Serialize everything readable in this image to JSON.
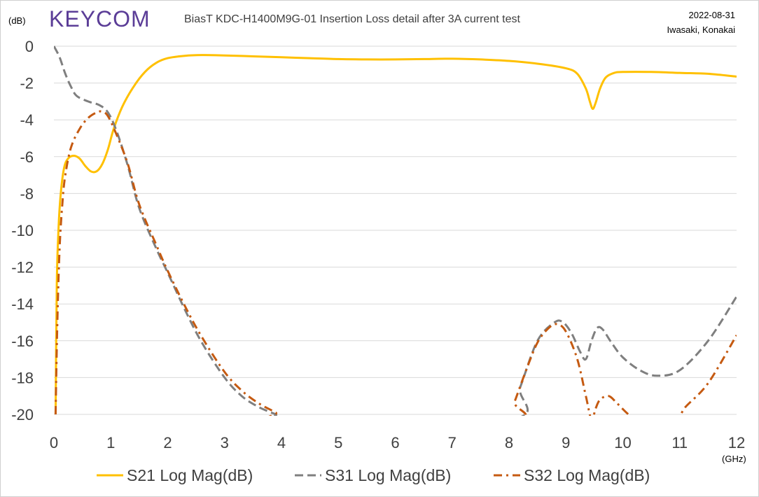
{
  "header": {
    "logo_text": "KEYCOM",
    "title": "BiasT KDC-H1400M9G-01 Insertion Loss detail after 3A current test",
    "date": "2022-08-31",
    "authors": "Iwasaki, Konakai"
  },
  "chart_data": {
    "type": "line",
    "title": "BiasT KDC-H1400M9G-01 Insertion Loss detail after 3A current test",
    "ylabel": "(dB)",
    "xlabel": "(GHz)",
    "xlim": [
      0,
      12
    ],
    "ylim": [
      -20,
      0
    ],
    "xticks": [
      "0",
      "1",
      "2",
      "3",
      "4",
      "5",
      "6",
      "7",
      "8",
      "9",
      "10",
      "11",
      "12"
    ],
    "yticks": [
      "0",
      "-2",
      "-4",
      "-6",
      "-8",
      "-10",
      "-12",
      "-14",
      "-16",
      "-18",
      "-20"
    ],
    "grid": true,
    "legend_position": "bottom",
    "series": [
      {
        "name": "S21 Log Mag(dB)",
        "color": "#FFC000",
        "style": "solid",
        "x": [
          0.03,
          0.05,
          0.08,
          0.12,
          0.18,
          0.25,
          0.35,
          0.45,
          0.55,
          0.65,
          0.75,
          0.85,
          0.95,
          1.05,
          1.2,
          1.4,
          1.6,
          1.8,
          2.0,
          2.3,
          2.6,
          3.0,
          3.5,
          4.0,
          4.5,
          5.0,
          5.5,
          6.0,
          6.5,
          7.0,
          7.5,
          8.0,
          8.5,
          9.0,
          9.2,
          9.35,
          9.42,
          9.47,
          9.52,
          9.6,
          9.7,
          9.85,
          10.0,
          10.5,
          11.0,
          11.5,
          12.0
        ],
        "y": [
          -20,
          -13,
          -10,
          -8,
          -6.6,
          -6.1,
          -5.95,
          -6.1,
          -6.5,
          -6.8,
          -6.8,
          -6.4,
          -5.6,
          -4.5,
          -3.3,
          -2.2,
          -1.4,
          -0.9,
          -0.65,
          -0.52,
          -0.48,
          -0.5,
          -0.55,
          -0.6,
          -0.65,
          -0.7,
          -0.72,
          -0.72,
          -0.7,
          -0.68,
          -0.72,
          -0.8,
          -0.95,
          -1.2,
          -1.5,
          -2.3,
          -3.0,
          -3.4,
          -3.1,
          -2.3,
          -1.7,
          -1.45,
          -1.4,
          -1.4,
          -1.45,
          -1.5,
          -1.65
        ]
      },
      {
        "name": "S31 Log Mag(dB)",
        "color": "#7F7F7F",
        "style": "dashed",
        "x": [
          0.0,
          0.1,
          0.2,
          0.3,
          0.4,
          0.6,
          0.8,
          0.95,
          1.1,
          1.3,
          1.5,
          1.8,
          2.0,
          2.3,
          2.6,
          3.0,
          3.3,
          3.6,
          3.9,
          4.1,
          7.98,
          8.2,
          8.5,
          8.8,
          8.95,
          9.1,
          9.25,
          9.35,
          9.45,
          9.55,
          9.65,
          9.8,
          10.0,
          10.3,
          10.6,
          11.0,
          11.5,
          12.0
        ],
        "y": [
          0,
          -0.6,
          -1.5,
          -2.2,
          -2.7,
          -3.0,
          -3.2,
          -3.6,
          -4.6,
          -6.5,
          -8.8,
          -11.0,
          -12.3,
          -14.3,
          -16.1,
          -18.0,
          -19.0,
          -19.6,
          -20,
          -20.3,
          -20.3,
          -18.5,
          -16.0,
          -15.0,
          -15.0,
          -15.6,
          -16.6,
          -17.0,
          -16.0,
          -15.3,
          -15.4,
          -16.1,
          -16.9,
          -17.6,
          -17.9,
          -17.6,
          -16.0,
          -13.6
        ]
      },
      {
        "name": "S32 Log Mag(dB)",
        "color": "#C55A11",
        "style": "dashdot",
        "x": [
          0.03,
          0.06,
          0.1,
          0.15,
          0.2,
          0.3,
          0.45,
          0.6,
          0.75,
          0.85,
          0.95,
          1.1,
          1.3,
          1.5,
          1.8,
          2.0,
          2.3,
          2.6,
          3.0,
          3.3,
          3.6,
          3.9,
          4.1,
          7.98,
          8.1,
          8.3,
          8.5,
          8.7,
          8.85,
          9.0,
          9.2,
          9.35,
          9.45,
          9.52,
          9.6,
          9.75,
          9.9,
          10.1,
          10.3,
          10.9,
          11.1,
          11.5,
          12.0
        ],
        "y": [
          -20,
          -15.0,
          -11.0,
          -8.5,
          -7.0,
          -5.5,
          -4.5,
          -3.9,
          -3.6,
          -3.55,
          -3.8,
          -4.8,
          -6.4,
          -8.6,
          -10.8,
          -12.2,
          -14.1,
          -15.8,
          -17.7,
          -18.7,
          -19.4,
          -19.9,
          -20.3,
          -20.3,
          -19.3,
          -17.6,
          -16.1,
          -15.3,
          -15.1,
          -15.5,
          -17.0,
          -19.0,
          -20.3,
          -19.7,
          -19.2,
          -19.0,
          -19.4,
          -20.0,
          -20.4,
          -20.4,
          -19.6,
          -18.3,
          -15.7
        ]
      }
    ]
  }
}
